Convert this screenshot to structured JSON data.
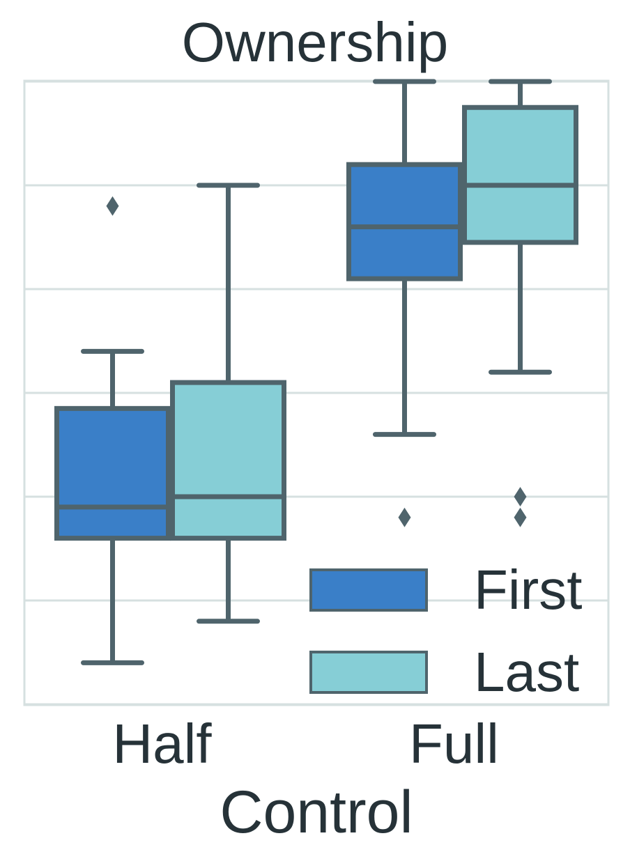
{
  "chart_data": {
    "type": "box",
    "title": "Ownership",
    "xlabel": "Control",
    "ylabel": "",
    "categories": [
      "Half",
      "Full"
    ],
    "ylim": [
      0,
      6
    ],
    "grid": true,
    "legend_position": "bottom-right",
    "colors": {
      "First": "#3a7fc8",
      "Last": "#86ced6",
      "edge": "#4f646c",
      "grid": "#d6e0e0"
    },
    "series": [
      {
        "name": "First",
        "boxes": [
          {
            "category": "Half",
            "whisker_low": 0.4,
            "q1": 1.6,
            "median": 1.9,
            "q3": 2.85,
            "whisker_high": 3.4,
            "outliers": [
              4.8
            ]
          },
          {
            "category": "Full",
            "whisker_low": 2.6,
            "q1": 4.1,
            "median": 4.6,
            "q3": 5.2,
            "whisker_high": 6.0,
            "outliers": [
              1.8
            ]
          }
        ]
      },
      {
        "name": "Last",
        "boxes": [
          {
            "category": "Half",
            "whisker_low": 0.8,
            "q1": 1.6,
            "median": 2.0,
            "q3": 3.1,
            "whisker_high": 5.0,
            "outliers": []
          },
          {
            "category": "Full",
            "whisker_low": 3.2,
            "q1": 4.45,
            "median": 5.0,
            "q3": 5.75,
            "whisker_high": 6.0,
            "outliers": [
              1.8,
              2.0
            ]
          }
        ]
      }
    ]
  }
}
